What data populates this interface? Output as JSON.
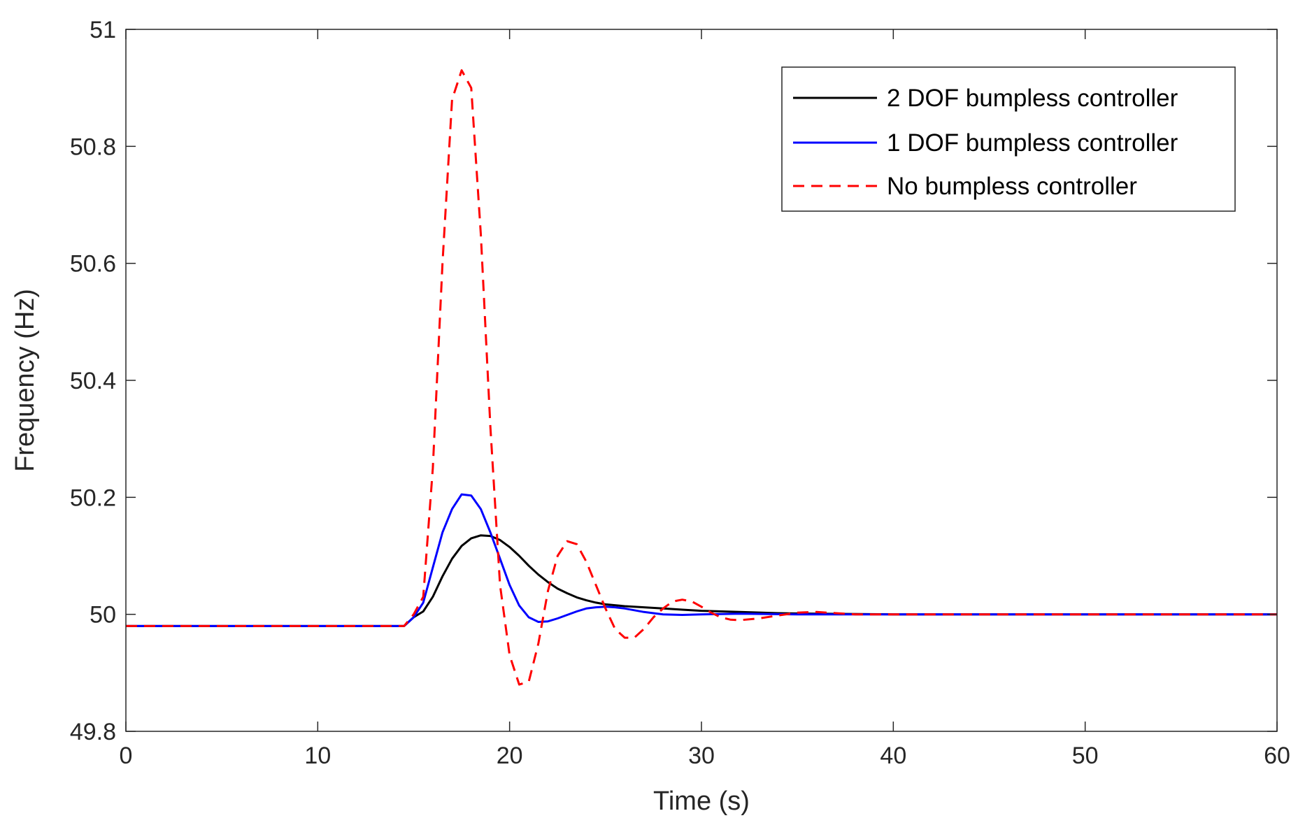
{
  "chart_data": {
    "type": "line",
    "title": "",
    "xlabel": "Time (s)",
    "ylabel": "Frequency (Hz)",
    "xlim": [
      0,
      60
    ],
    "ylim": [
      49.8,
      51
    ],
    "xticks": [
      0,
      10,
      20,
      30,
      40,
      50,
      60
    ],
    "yticks": [
      49.8,
      50,
      50.2,
      50.4,
      50.6,
      50.8,
      51
    ],
    "xtick_labels": [
      "0",
      "10",
      "20",
      "30",
      "40",
      "50",
      "60"
    ],
    "ytick_labels": [
      "49.8",
      "50",
      "50.2",
      "50.4",
      "50.6",
      "50.8",
      "51"
    ],
    "grid": false,
    "legend_position": "top-right",
    "series": [
      {
        "name": "2 DOF bumpless controller",
        "color": "#000000",
        "dash": "solid",
        "x": [
          0,
          14.5,
          15,
          15.5,
          16,
          16.5,
          17,
          17.5,
          18,
          18.5,
          19,
          19.5,
          20,
          20.5,
          21,
          21.5,
          22,
          22.5,
          23,
          23.5,
          24,
          24.5,
          25,
          26,
          27,
          28,
          29,
          30,
          32,
          34,
          36,
          40,
          60
        ],
        "y": [
          49.98,
          49.98,
          49.995,
          50.005,
          50.03,
          50.065,
          50.095,
          50.117,
          50.13,
          50.135,
          50.134,
          50.127,
          50.115,
          50.1,
          50.083,
          50.068,
          50.055,
          50.044,
          50.036,
          50.029,
          50.024,
          50.02,
          50.017,
          50.014,
          50.012,
          50.01,
          50.008,
          50.006,
          50.004,
          50.002,
          50.001,
          50.0,
          50.0
        ]
      },
      {
        "name": "1 DOF bumpless controller",
        "color": "#0000ff",
        "dash": "solid",
        "x": [
          0,
          14.5,
          15,
          15.5,
          16,
          16.5,
          17,
          17.5,
          18,
          18.5,
          19,
          19.5,
          20,
          20.5,
          21,
          21.5,
          22,
          22.5,
          23,
          23.5,
          24,
          24.5,
          25,
          25.5,
          26,
          26.5,
          27,
          28,
          29,
          30,
          32,
          35,
          40,
          60
        ],
        "y": [
          49.98,
          49.98,
          49.995,
          50.02,
          50.08,
          50.14,
          50.18,
          50.205,
          50.203,
          50.18,
          50.14,
          50.095,
          50.05,
          50.015,
          49.995,
          49.987,
          49.988,
          49.993,
          49.999,
          50.005,
          50.01,
          50.012,
          50.013,
          50.012,
          50.01,
          50.007,
          50.004,
          50.0,
          49.999,
          50.0,
          50.001,
          50.0,
          50.0,
          50.0
        ]
      },
      {
        "name": "No bumpless controller",
        "color": "#ff0000",
        "dash": "dashed",
        "x": [
          0,
          14.5,
          15,
          15.5,
          16,
          16.5,
          17,
          17.5,
          18,
          18.5,
          19,
          19.5,
          20,
          20.5,
          21,
          21.5,
          22,
          22.5,
          23,
          23.5,
          24,
          24.5,
          25,
          25.5,
          26,
          26.5,
          27,
          27.5,
          28,
          28.5,
          29,
          29.5,
          30,
          30.5,
          31,
          31.5,
          32,
          33,
          34,
          35,
          36,
          37,
          38,
          40,
          45,
          60
        ],
        "y": [
          49.98,
          49.98,
          50.0,
          50.03,
          50.25,
          50.6,
          50.88,
          50.93,
          50.9,
          50.65,
          50.32,
          50.05,
          49.93,
          49.88,
          49.885,
          49.95,
          50.04,
          50.1,
          50.125,
          50.12,
          50.09,
          50.05,
          50.01,
          49.975,
          49.96,
          49.96,
          49.975,
          49.995,
          50.01,
          50.022,
          50.025,
          50.022,
          50.013,
          50.003,
          49.995,
          49.991,
          49.99,
          49.993,
          49.998,
          50.003,
          50.004,
          50.002,
          50.0,
          50.0,
          50.0,
          50.0
        ]
      }
    ]
  }
}
